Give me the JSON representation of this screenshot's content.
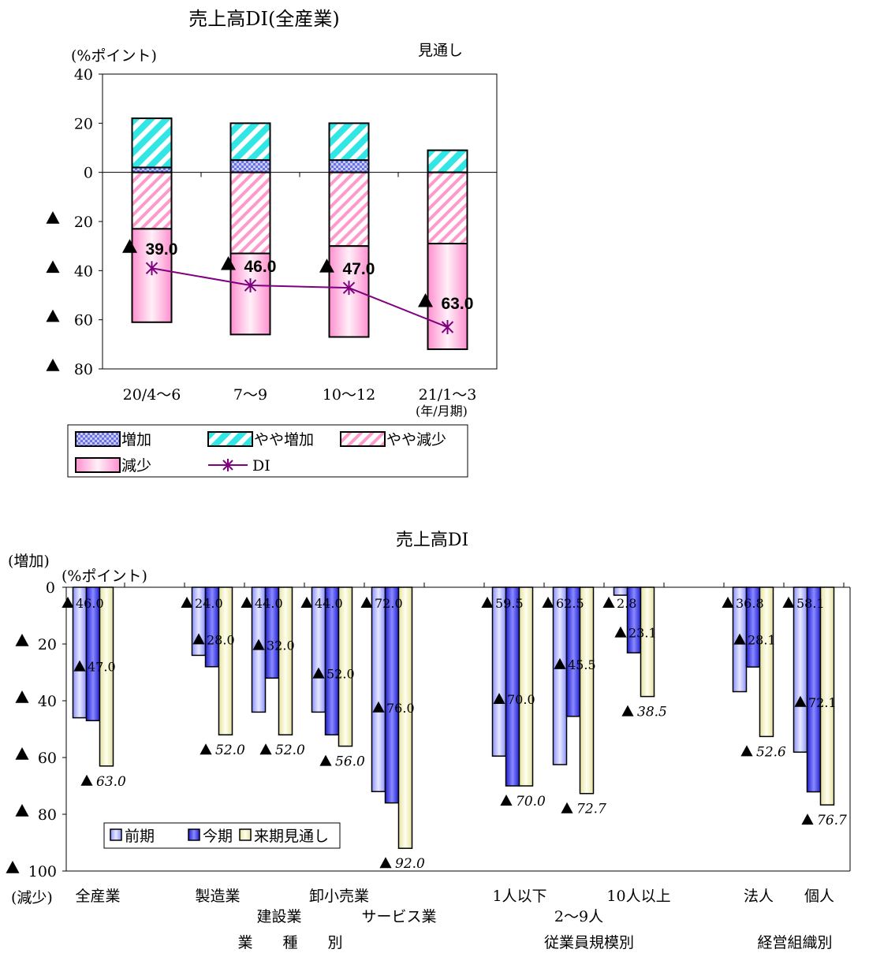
{
  "chart_data": [
    {
      "type": "bar",
      "subtype": "stacked bar with line overlay",
      "title": "売上高DI(全産業)",
      "ylabel": "(%ポイント)",
      "annotation": "見通し",
      "xlabel_note": "(年/月期)",
      "categories": [
        "20/4～6",
        "7～9",
        "10～12",
        "21/1～3"
      ],
      "ylim": [
        -80,
        40
      ],
      "y_ticks": [
        {
          "value": 40,
          "label": "40"
        },
        {
          "value": 20,
          "label": "20"
        },
        {
          "value": 0,
          "label": "0"
        },
        {
          "value": -20,
          "label": "▲ 20"
        },
        {
          "value": -40,
          "label": "▲ 40"
        },
        {
          "value": -60,
          "label": "▲ 60"
        },
        {
          "value": -80,
          "label": "▲ 80"
        }
      ],
      "series": [
        {
          "name": "増加",
          "values": [
            2,
            5,
            5,
            0
          ],
          "color": "#9fa8ff"
        },
        {
          "name": "やや増加",
          "values": [
            20,
            15,
            15,
            9
          ],
          "color": "#33e6e6"
        },
        {
          "name": "やや減少",
          "values": [
            -23,
            -33,
            -30,
            -29
          ],
          "color": "#ff99cc"
        },
        {
          "name": "減少",
          "values": [
            -38,
            -33,
            -37,
            -43
          ],
          "color": "#ffb3e0"
        },
        {
          "name": "DI",
          "type": "line",
          "values": [
            -39,
            -46,
            -47,
            -63
          ],
          "color": "#800080"
        }
      ],
      "data_labels": [
        "▲ 39.0",
        "▲ 46.0",
        "▲ 47.0",
        "▲ 63.0"
      ],
      "legend": [
        "増加",
        "やや増加",
        "やや減少",
        "減少",
        "DI"
      ],
      "legend_position": "bottom"
    },
    {
      "type": "bar",
      "title": "売上高DI",
      "ylabel": "(%ポイント)",
      "y_top_label": "(増加)",
      "y_bottom_label": "(減少)",
      "ylim": [
        -100,
        0
      ],
      "y_ticks": [
        {
          "value": 0,
          "label": "0"
        },
        {
          "value": -20,
          "label": "▲ 20"
        },
        {
          "value": -40,
          "label": "▲ 40"
        },
        {
          "value": -60,
          "label": "▲ 60"
        },
        {
          "value": -80,
          "label": "▲ 80"
        },
        {
          "value": -100,
          "label": "▲ 100"
        }
      ],
      "categories": [
        "全産業",
        "製造業",
        "建設業",
        "卸小売業",
        "サービス業",
        "1人以下",
        "2～9人",
        "10人以上",
        "法人",
        "個人"
      ],
      "series": [
        {
          "name": "前期",
          "values": [
            -46.0,
            -24.0,
            -44.0,
            -44.0,
            -72.0,
            -59.5,
            -62.5,
            -2.8,
            -36.8,
            -58.1
          ],
          "color": "#a3a8ff"
        },
        {
          "name": "今期",
          "values": [
            -47.0,
            -28.0,
            -32.0,
            -52.0,
            -76.0,
            -70.0,
            -45.5,
            -23.1,
            -28.1,
            -72.1
          ],
          "color": "#4a4af0"
        },
        {
          "name": "来期見通し",
          "values": [
            -63.0,
            -52.0,
            -52.0,
            -56.0,
            -92.0,
            -70.0,
            -72.7,
            -38.5,
            -52.6,
            -76.7
          ],
          "color": "#f4f2c0"
        }
      ],
      "data_labels": {
        "前期": [
          "46.0",
          "24.0",
          "44.0",
          "44.0",
          "72.0",
          "59.5",
          "62.5",
          "2.8",
          "36.8",
          "58.1"
        ],
        "今期": [
          "47.0",
          "28.0",
          "32.0",
          "52.0",
          "76.0",
          "70.0",
          "45.5",
          "23.1",
          "28.1",
          "72.1"
        ],
        "来期見通し": [
          "63.0",
          "52.0",
          "52.0",
          "56.0",
          "92.0",
          "70.0",
          "72.7",
          "38.5",
          "52.6",
          "76.7"
        ]
      },
      "group_labels": [
        "業　　種　　別",
        "従業員規模別",
        "経営組織別"
      ],
      "legend": [
        "前期",
        "今期",
        "来期見通し"
      ],
      "legend_position": "bottom-left inside plot"
    }
  ]
}
